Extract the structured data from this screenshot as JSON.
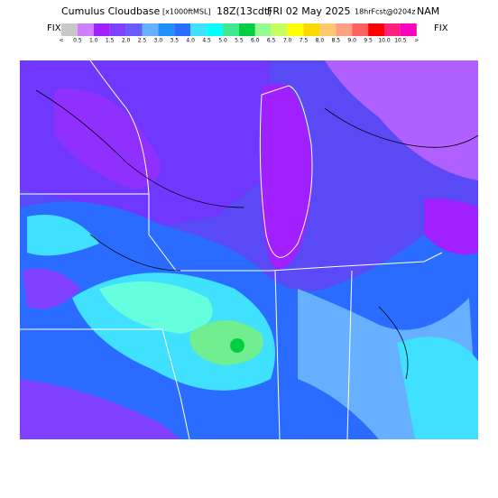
{
  "header": {
    "product": "Cumulus Cloudbase",
    "units": "[x1000ftMSL]",
    "valid": "18Z(13cdt)",
    "date": "FRI 02 May 2025",
    "forecast": "18hrFcst@0204z",
    "model": "NAM"
  },
  "legend": {
    "left_label": "FIX",
    "right_label": "FIX",
    "colors": [
      "#c8c8c8",
      "#d080ff",
      "#a020ff",
      "#8040ff",
      "#6a5cff",
      "#66b0ff",
      "#1e90ff",
      "#2a6cff",
      "#40e0ff",
      "#00ffff",
      "#40e890",
      "#00d040",
      "#90ff90",
      "#c8ff60",
      "#ffff00",
      "#ffd700",
      "#ffc870",
      "#ffa080",
      "#ff6060",
      "#ff0000",
      "#ff2080",
      "#ff00c0"
    ],
    "ticks": [
      "<",
      "0.5",
      "1.0",
      "1.5",
      "2.0",
      "2.5",
      "3.0",
      "3.5",
      "4.0",
      "4.5",
      "5.0",
      "5.5",
      "6.0",
      "6.5",
      "7.0",
      "7.5",
      "8.0",
      "8.5",
      "9.0",
      "9.5",
      "10.0",
      "10.5",
      ">"
    ]
  }
}
